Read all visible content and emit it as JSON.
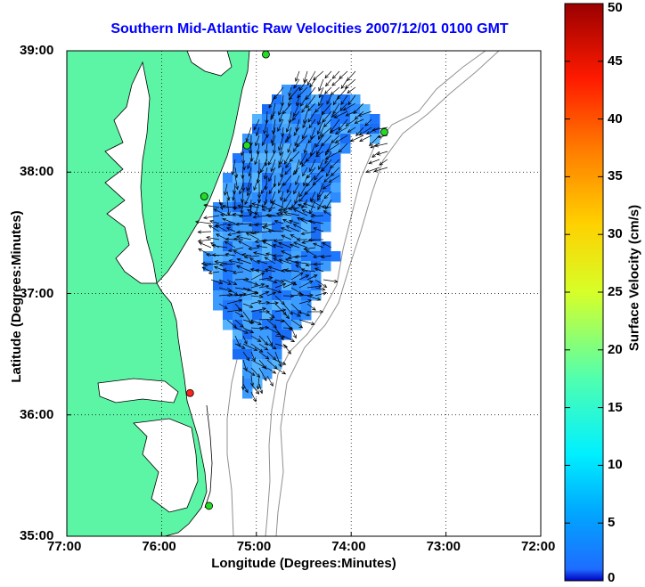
{
  "title": "Southern Mid-Atlantic Raw Velocities 2007/12/01 0100 GMT",
  "map": {
    "xlabel": "Longitude (Degrees:Minutes)",
    "ylabel": "Latitude (Degrees:Minutes)",
    "lon_range": [
      -77,
      -72
    ],
    "lat_range": [
      35,
      39
    ],
    "xticks": [
      {
        "value": -77,
        "label": "77:00"
      },
      {
        "value": -76,
        "label": "76:00"
      },
      {
        "value": -75,
        "label": "75:00"
      },
      {
        "value": -74,
        "label": "74:00"
      },
      {
        "value": -73,
        "label": "73:00"
      },
      {
        "value": -72,
        "label": "72:00"
      }
    ],
    "yticks": [
      {
        "value": 39,
        "label": "39:00"
      },
      {
        "value": 38,
        "label": "38:00"
      },
      {
        "value": 37,
        "label": "37:00"
      },
      {
        "value": 36,
        "label": "36:00"
      },
      {
        "value": 35,
        "label": "35:00"
      }
    ],
    "land_color": "#5cf5a5",
    "water_color": "#ffffff",
    "vector_color": "#000000",
    "grid": "dotted",
    "radar_sites": [
      {
        "lon": -74.9,
        "lat": 38.97,
        "color": "green"
      },
      {
        "lon": -75.1,
        "lat": 38.22,
        "color": "green"
      },
      {
        "lon": -73.65,
        "lat": 38.33,
        "color": "green"
      },
      {
        "lon": -75.55,
        "lat": 37.8,
        "color": "green"
      },
      {
        "lon": -75.7,
        "lat": 36.18,
        "color": "red"
      },
      {
        "lon": -75.5,
        "lat": 35.25,
        "color": "green"
      }
    ]
  },
  "colorbar": {
    "label": "Surface Velocity (cm/s)",
    "min": 0,
    "max": 50,
    "ticks": [
      0,
      5,
      10,
      15,
      20,
      25,
      30,
      35,
      40,
      45,
      50
    ],
    "colormap": "jet"
  }
}
